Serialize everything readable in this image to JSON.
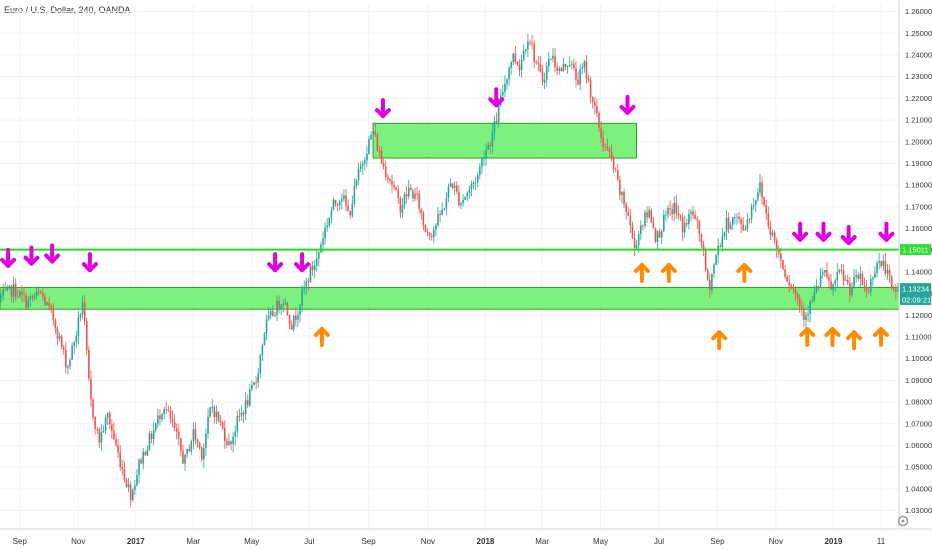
{
  "chart_data": {
    "type": "candlestick",
    "title": "Euro / U.S. Dollar, 240, OANDA",
    "y_ticks": [
      1.26,
      1.25,
      1.24,
      1.23,
      1.22,
      1.21,
      1.2,
      1.19,
      1.18,
      1.17,
      1.16,
      1.15,
      1.14,
      1.13,
      1.12,
      1.11,
      1.1,
      1.09,
      1.08,
      1.07,
      1.06,
      1.05,
      1.04,
      1.03
    ],
    "y_tick_labels": [
      "1.26000",
      "1.25000",
      "1.24000",
      "1.23000",
      "1.22000",
      "1.21000",
      "1.20000",
      "1.19000",
      "1.18000",
      "1.17000",
      "1.16000",
      "1.15000",
      "1.14000",
      "1.13000",
      "1.12000",
      "1.11000",
      "1.10000",
      "1.09000",
      "1.08000",
      "1.07000",
      "1.06000",
      "1.05000",
      "1.04000",
      "1.03000"
    ],
    "ylim": [
      1.0215,
      1.2635
    ],
    "xlim": [
      0,
      100
    ],
    "x_ticks": [
      {
        "label": "Sep",
        "x": 2.2,
        "bold": false
      },
      {
        "label": "Nov",
        "x": 8.7,
        "bold": false
      },
      {
        "label": "2017",
        "x": 15.1,
        "bold": true
      },
      {
        "label": "Mar",
        "x": 21.5,
        "bold": false
      },
      {
        "label": "May",
        "x": 28.0,
        "bold": false
      },
      {
        "label": "Jul",
        "x": 34.4,
        "bold": false
      },
      {
        "label": "Sep",
        "x": 41.0,
        "bold": false
      },
      {
        "label": "Nov",
        "x": 47.6,
        "bold": false
      },
      {
        "label": "2018",
        "x": 54.0,
        "bold": true
      },
      {
        "label": "Mar",
        "x": 60.3,
        "bold": false
      },
      {
        "label": "May",
        "x": 66.8,
        "bold": false
      },
      {
        "label": "Jul",
        "x": 73.3,
        "bold": false
      },
      {
        "label": "Sep",
        "x": 79.8,
        "bold": false
      },
      {
        "label": "Nov",
        "x": 86.3,
        "bold": false
      },
      {
        "label": "2019",
        "x": 92.7,
        "bold": true
      },
      {
        "label": "11",
        "x": 98.0,
        "bold": false
      }
    ],
    "price_path": [
      [
        0,
        1.128
      ],
      [
        1.5,
        1.132
      ],
      [
        3,
        1.126
      ],
      [
        4.5,
        1.13
      ],
      [
        6,
        1.118
      ],
      [
        7.5,
        1.096
      ],
      [
        8.5,
        1.112
      ],
      [
        9.2,
        1.127
      ],
      [
        10,
        1.082
      ],
      [
        11,
        1.062
      ],
      [
        12,
        1.074
      ],
      [
        13,
        1.058
      ],
      [
        14,
        1.044
      ],
      [
        14.6,
        1.037
      ],
      [
        15.5,
        1.052
      ],
      [
        17,
        1.066
      ],
      [
        18.2,
        1.079
      ],
      [
        19.5,
        1.066
      ],
      [
        20.5,
        1.052
      ],
      [
        21.5,
        1.066
      ],
      [
        22.5,
        1.056
      ],
      [
        23.5,
        1.079
      ],
      [
        24.5,
        1.07
      ],
      [
        25.5,
        1.06
      ],
      [
        26.5,
        1.072
      ],
      [
        27.5,
        1.08
      ],
      [
        28.5,
        1.09
      ],
      [
        29.5,
        1.115
      ],
      [
        30.5,
        1.122
      ],
      [
        31.5,
        1.128
      ],
      [
        32.5,
        1.115
      ],
      [
        33.5,
        1.128
      ],
      [
        34.5,
        1.14
      ],
      [
        35.2,
        1.145
      ],
      [
        36,
        1.158
      ],
      [
        37,
        1.17
      ],
      [
        38,
        1.176
      ],
      [
        38.8,
        1.166
      ],
      [
        39.8,
        1.184
      ],
      [
        40.8,
        1.197
      ],
      [
        41.5,
        1.205
      ],
      [
        42.5,
        1.19
      ],
      [
        43.5,
        1.182
      ],
      [
        44.5,
        1.17
      ],
      [
        45.5,
        1.178
      ],
      [
        46.5,
        1.173
      ],
      [
        47.2,
        1.16
      ],
      [
        48,
        1.158
      ],
      [
        49.2,
        1.168
      ],
      [
        50.2,
        1.182
      ],
      [
        51.2,
        1.172
      ],
      [
        52.2,
        1.178
      ],
      [
        53.2,
        1.185
      ],
      [
        53.8,
        1.195
      ],
      [
        54.5,
        1.2
      ],
      [
        55.2,
        1.21
      ],
      [
        56,
        1.225
      ],
      [
        57,
        1.24
      ],
      [
        57.8,
        1.235
      ],
      [
        58.8,
        1.25
      ],
      [
        59.5,
        1.238
      ],
      [
        60.3,
        1.228
      ],
      [
        61.3,
        1.24
      ],
      [
        62.3,
        1.232
      ],
      [
        63.3,
        1.238
      ],
      [
        64.2,
        1.228
      ],
      [
        65,
        1.235
      ],
      [
        66,
        1.218
      ],
      [
        67,
        1.2
      ],
      [
        68,
        1.192
      ],
      [
        69,
        1.176
      ],
      [
        70,
        1.165
      ],
      [
        70.5,
        1.15
      ],
      [
        71.3,
        1.162
      ],
      [
        72.3,
        1.168
      ],
      [
        73,
        1.155
      ],
      [
        74,
        1.165
      ],
      [
        75,
        1.17
      ],
      [
        76,
        1.16
      ],
      [
        77,
        1.168
      ],
      [
        78,
        1.155
      ],
      [
        78.8,
        1.132
      ],
      [
        79.8,
        1.15
      ],
      [
        80.8,
        1.162
      ],
      [
        81.8,
        1.165
      ],
      [
        82.8,
        1.16
      ],
      [
        83.8,
        1.172
      ],
      [
        84.5,
        1.18
      ],
      [
        85.5,
        1.162
      ],
      [
        86.5,
        1.15
      ],
      [
        87.5,
        1.138
      ],
      [
        88.5,
        1.13
      ],
      [
        89.5,
        1.12
      ],
      [
        90.5,
        1.128
      ],
      [
        91.5,
        1.14
      ],
      [
        92.5,
        1.132
      ],
      [
        93.5,
        1.14
      ],
      [
        94.5,
        1.132
      ],
      [
        95.5,
        1.138
      ],
      [
        96.5,
        1.13
      ],
      [
        97.5,
        1.145
      ],
      [
        98.5,
        1.142
      ],
      [
        99.3,
        1.13
      ],
      [
        100,
        1.1323
      ]
    ],
    "annotations": {
      "zones": [
        {
          "x_start": 0,
          "x_end": 100,
          "y_low": 1.1228,
          "y_high": 1.1328
        },
        {
          "x_start": 41.5,
          "x_end": 70.8,
          "y_low": 1.1925,
          "y_high": 1.2085
        }
      ],
      "resistance_level": 1.1503,
      "down_arrows": [
        {
          "x": 0.9,
          "y": 1.1465
        },
        {
          "x": 3.5,
          "y": 1.1475
        },
        {
          "x": 5.8,
          "y": 1.1485
        },
        {
          "x": 10.0,
          "y": 1.1445
        },
        {
          "x": 30.6,
          "y": 1.1445
        },
        {
          "x": 33.6,
          "y": 1.1445
        },
        {
          "x": 42.6,
          "y": 1.2155
        },
        {
          "x": 55.2,
          "y": 1.2205
        },
        {
          "x": 69.8,
          "y": 1.217
        },
        {
          "x": 89.0,
          "y": 1.1585
        },
        {
          "x": 91.6,
          "y": 1.1585
        },
        {
          "x": 94.4,
          "y": 1.157
        },
        {
          "x": 98.6,
          "y": 1.1585
        }
      ],
      "up_arrows": [
        {
          "x": 35.8,
          "y": 1.11
        },
        {
          "x": 71.4,
          "y": 1.1395
        },
        {
          "x": 74.4,
          "y": 1.1395
        },
        {
          "x": 80.0,
          "y": 1.1085
        },
        {
          "x": 82.8,
          "y": 1.1395
        },
        {
          "x": 89.8,
          "y": 1.11
        },
        {
          "x": 92.6,
          "y": 1.11
        },
        {
          "x": 95.0,
          "y": 1.1085
        },
        {
          "x": 98.0,
          "y": 1.11
        }
      ]
    },
    "price_tags": [
      {
        "label": "1.15011",
        "value": 1.1503,
        "color": "#33dd33"
      },
      {
        "label": "1.13234",
        "value": 1.1323,
        "color": "#26a69a"
      },
      {
        "label": "02:09:21",
        "value": 1.1273,
        "color": "#26a69a"
      }
    ],
    "colors": {
      "up_candle": "#26a69a",
      "down_candle": "#ef5350",
      "zone_fill": "#66ee66",
      "zone_stroke": "#2aa02a",
      "resistance_line": "#22dd22",
      "down_arrow": "#e000e0",
      "up_arrow": "#ff8c00",
      "grid": "#f0f3fa",
      "axis_text": "#333333"
    }
  }
}
